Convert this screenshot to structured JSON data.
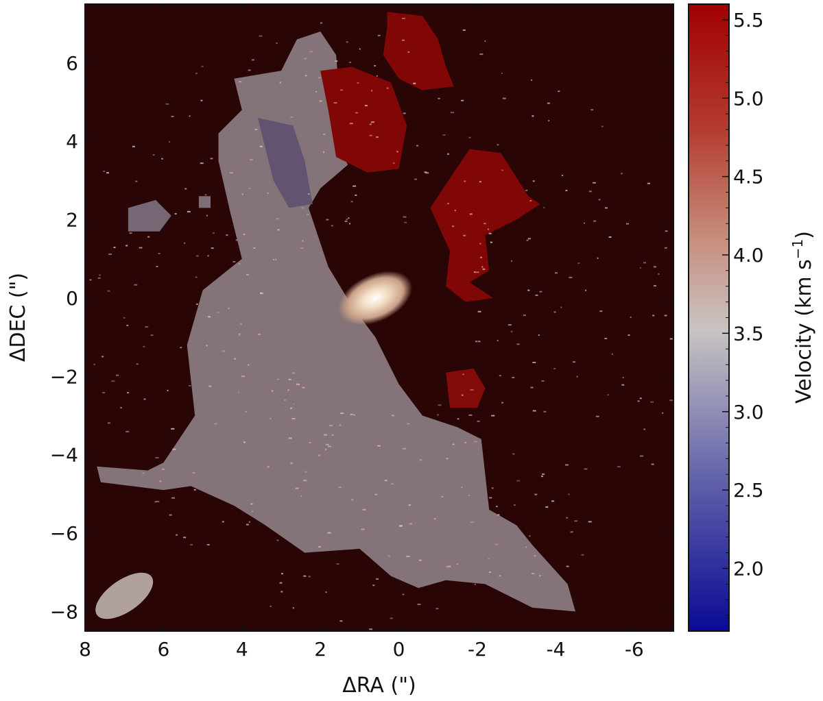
{
  "chart_data": {
    "type": "heatmap",
    "title": "",
    "xlabel": "ΔRA (\")",
    "ylabel": "ΔDEC (\")",
    "xlim": [
      8,
      -7
    ],
    "ylim": [
      -8.5,
      7.5
    ],
    "x_ticks": [
      8,
      6,
      4,
      2,
      0,
      -2,
      -4,
      -6
    ],
    "x_tick_labels": [
      "8",
      "6",
      "4",
      "2",
      "0",
      "-2",
      "-4",
      "-6"
    ],
    "y_ticks": [
      6,
      4,
      2,
      0,
      -2,
      -4,
      -6,
      -8
    ],
    "y_tick_labels": [
      "6",
      "4",
      "2",
      "0",
      "−2",
      "−4",
      "−6",
      "−8"
    ],
    "grid": false,
    "background_color": "#2a0506",
    "colorbar": {
      "label": "Velocity (km s",
      "label_superscript": "−1",
      "label_close": ")",
      "colormap": "seismic (blue–white–red)",
      "range": [
        1.6,
        5.6
      ],
      "ticks": [
        2.0,
        2.5,
        3.0,
        3.5,
        4.0,
        4.5,
        5.0,
        5.5
      ],
      "tick_labels": [
        "2.0",
        "2.5",
        "3.0",
        "3.5",
        "4.0",
        "4.5",
        "5.0",
        "5.5"
      ],
      "colors": {
        "low": "#0a0a96",
        "mid": "#c8c4c2",
        "high": "#a00000"
      }
    },
    "regions": [
      {
        "id": "main-emission",
        "velocity": 3.4,
        "polygon": [
          [
            6.4,
            -4.4
          ],
          [
            6.0,
            -4.2
          ],
          [
            5.2,
            -3.0
          ],
          [
            5.4,
            -1.2
          ],
          [
            5.0,
            0.2
          ],
          [
            4.0,
            1.0
          ],
          [
            4.3,
            2.2
          ],
          [
            4.6,
            3.5
          ],
          [
            4.6,
            4.2
          ],
          [
            4.0,
            4.8
          ],
          [
            4.2,
            5.6
          ],
          [
            3.0,
            5.8
          ],
          [
            2.6,
            6.6
          ],
          [
            2.0,
            6.8
          ],
          [
            1.6,
            6.2
          ],
          [
            1.5,
            5.0
          ],
          [
            1.5,
            3.8
          ],
          [
            1.3,
            3.4
          ],
          [
            2.0,
            2.8
          ],
          [
            2.3,
            2.3
          ],
          [
            1.8,
            0.8
          ],
          [
            1.2,
            -0.2
          ],
          [
            0.6,
            -1.0
          ],
          [
            0.0,
            -2.2
          ],
          [
            -0.6,
            -3.0
          ],
          [
            -1.5,
            -3.3
          ],
          [
            -2.1,
            -3.6
          ],
          [
            -2.3,
            -5.4
          ],
          [
            -3.0,
            -5.8
          ],
          [
            -3.4,
            -6.3
          ],
          [
            -4.3,
            -7.3
          ],
          [
            -4.5,
            -8.0
          ],
          [
            -3.4,
            -7.9
          ],
          [
            -2.2,
            -7.3
          ],
          [
            -1.2,
            -7.2
          ],
          [
            -0.5,
            -7.4
          ],
          [
            0.2,
            -7.1
          ],
          [
            1.0,
            -6.4
          ],
          [
            2.4,
            -6.5
          ],
          [
            3.4,
            -5.8
          ],
          [
            4.2,
            -5.3
          ],
          [
            5.3,
            -4.8
          ],
          [
            6.0,
            -4.9
          ],
          [
            7.6,
            -4.7
          ],
          [
            7.7,
            -4.3
          ]
        ]
      },
      {
        "id": "blue-tint-ridge",
        "velocity": 2.9,
        "polygon": [
          [
            3.6,
            4.6
          ],
          [
            2.7,
            4.4
          ],
          [
            2.4,
            3.5
          ],
          [
            2.2,
            2.4
          ],
          [
            2.8,
            2.3
          ],
          [
            3.2,
            3.0
          ]
        ]
      },
      {
        "id": "west-blob",
        "velocity": 3.2,
        "polygon": [
          [
            6.9,
            2.3
          ],
          [
            6.2,
            2.5
          ],
          [
            5.8,
            2.1
          ],
          [
            6.1,
            1.7
          ],
          [
            6.9,
            1.7
          ]
        ]
      },
      {
        "id": "small-blob",
        "velocity": 3.3,
        "polygon": [
          [
            5.1,
            2.6
          ],
          [
            4.8,
            2.6
          ],
          [
            4.8,
            2.3
          ],
          [
            5.1,
            2.3
          ]
        ]
      },
      {
        "id": "red-north",
        "velocity": 5.5,
        "polygon": [
          [
            0.3,
            7.3
          ],
          [
            -0.6,
            7.2
          ],
          [
            -1.0,
            6.6
          ],
          [
            -1.2,
            5.9
          ],
          [
            -1.4,
            5.4
          ],
          [
            -0.6,
            5.3
          ],
          [
            0.0,
            5.6
          ],
          [
            0.4,
            6.2
          ],
          [
            0.3,
            6.9
          ]
        ]
      },
      {
        "id": "red-north-west",
        "velocity": 5.5,
        "polygon": [
          [
            2.0,
            5.8
          ],
          [
            1.2,
            5.9
          ],
          [
            0.2,
            5.5
          ],
          [
            -0.2,
            4.4
          ],
          [
            0.0,
            3.3
          ],
          [
            0.8,
            3.2
          ],
          [
            1.6,
            3.6
          ],
          [
            1.8,
            4.8
          ]
        ]
      },
      {
        "id": "red-east",
        "velocity": 5.5,
        "polygon": [
          [
            -1.2,
            2.9
          ],
          [
            -1.8,
            3.8
          ],
          [
            -2.6,
            3.7
          ],
          [
            -3.3,
            2.6
          ],
          [
            -3.6,
            2.4
          ],
          [
            -3.0,
            2.0
          ],
          [
            -2.2,
            1.6
          ],
          [
            -2.3,
            0.7
          ],
          [
            -1.8,
            0.4
          ],
          [
            -2.4,
            0.0
          ],
          [
            -1.7,
            -0.1
          ],
          [
            -1.2,
            0.3
          ],
          [
            -1.3,
            1.2
          ],
          [
            -0.8,
            2.3
          ],
          [
            -1.0,
            2.6
          ]
        ]
      },
      {
        "id": "red-south",
        "velocity": 5.4,
        "polygon": [
          [
            -1.2,
            -1.9
          ],
          [
            -1.9,
            -1.8
          ],
          [
            -2.2,
            -2.3
          ],
          [
            -2.0,
            -2.8
          ],
          [
            -1.3,
            -2.8
          ]
        ]
      }
    ],
    "bright_core": {
      "velocity": 3.9,
      "x": 0.6,
      "y": 0.0
    },
    "beam": {
      "x": 7.0,
      "y": -7.6,
      "major": 0.85,
      "minor": 0.45,
      "angle_deg": 35
    }
  }
}
